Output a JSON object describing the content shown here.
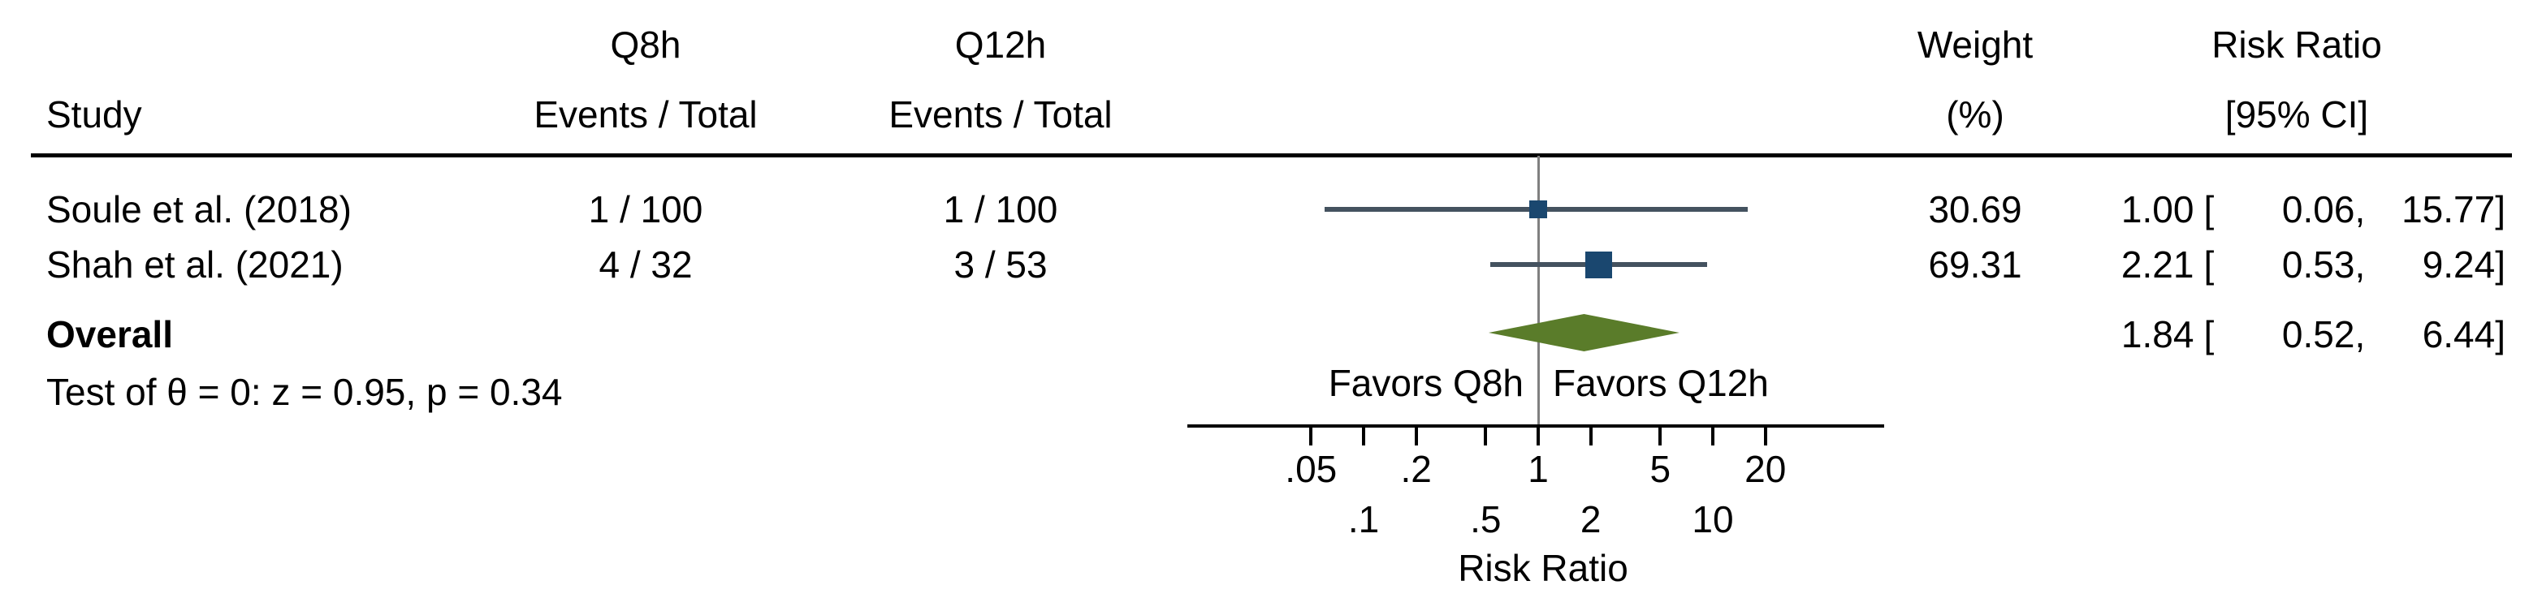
{
  "chart_data": {
    "type": "forest",
    "title": "",
    "columns": {
      "study": "Study",
      "group1": {
        "label": "Q8h",
        "sub": "Events / Total"
      },
      "group2": {
        "label": "Q12h",
        "sub": "Events / Total"
      },
      "weight": {
        "label": "Weight",
        "sub": "(%)"
      },
      "rr": {
        "label": "Risk Ratio",
        "sub": "[95% CI]"
      }
    },
    "x_axis": {
      "label": "Risk Ratio",
      "scale": "log",
      "range": [
        0.05,
        20
      ],
      "ticks_primary": [
        {
          "v": 0.05,
          "t": ".05"
        },
        {
          "v": 0.2,
          "t": ".2"
        },
        {
          "v": 1,
          "t": "1"
        },
        {
          "v": 5,
          "t": "5"
        },
        {
          "v": 20,
          "t": "20"
        }
      ],
      "ticks_staggered": [
        {
          "v": 0.1,
          "t": ".1"
        },
        {
          "v": 0.5,
          "t": ".5"
        },
        {
          "v": 2,
          "t": "2"
        },
        {
          "v": 10,
          "t": "10"
        }
      ]
    },
    "reference": {
      "value": 1
    },
    "favors": {
      "left": "Favors Q8h",
      "right": "Favors Q12h"
    },
    "punctuation": {
      "open": "[",
      "comma": ",",
      "close": "]"
    },
    "studies": [
      {
        "name": "Soule et al. (2018)",
        "events_q8h": "1 / 100",
        "events_q12h": "1 / 100",
        "weight": 30.69,
        "weight_text": "30.69",
        "rr": 1.0,
        "lo": 0.06,
        "hi": 15.77,
        "rr_text": "1.00",
        "lo_text": "0.06",
        "hi_text": "15.77"
      },
      {
        "name": "Shah et al. (2021)",
        "events_q8h": "4 / 32",
        "events_q12h": "3 / 53",
        "weight": 69.31,
        "weight_text": "69.31",
        "rr": 2.21,
        "lo": 0.53,
        "hi": 9.24,
        "rr_text": "2.21",
        "lo_text": "0.53",
        "hi_text": "9.24"
      }
    ],
    "overall": {
      "label": "Overall",
      "rr": 1.84,
      "lo": 0.52,
      "hi": 6.44,
      "rr_text": "1.84",
      "lo_text": "0.52",
      "hi_text": "6.44",
      "test_text": "Test of θ = 0: z = 0.95, p = 0.34"
    },
    "colors": {
      "marker": "#1a476f",
      "whisker": "#44525f",
      "diamond": "#5a7c2a",
      "reference": "#808080",
      "axis": "#000000"
    }
  }
}
